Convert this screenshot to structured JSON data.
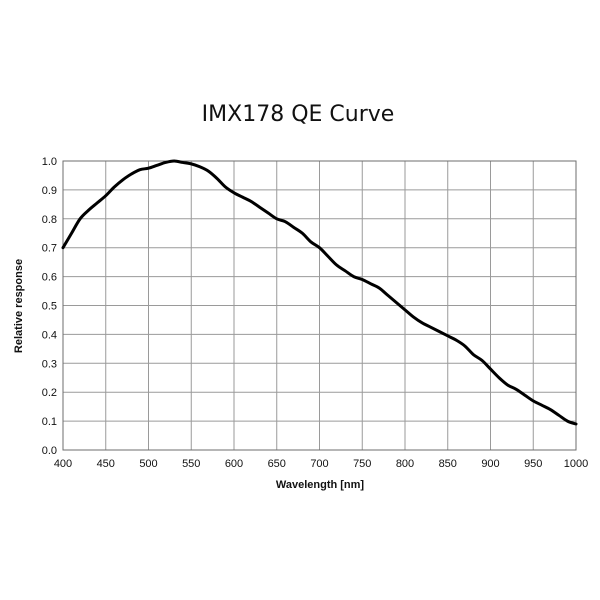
{
  "chart_data": {
    "type": "line",
    "title": "IMX178 QE Curve",
    "xlabel": "Wavelength [nm]",
    "ylabel": "Relative response",
    "xlim": [
      400,
      1000
    ],
    "ylim": [
      0,
      1.0
    ],
    "x_ticks": [
      400,
      450,
      500,
      550,
      600,
      650,
      700,
      750,
      800,
      850,
      900,
      950,
      1000
    ],
    "y_ticks": [
      "0.0",
      "0.1",
      "0.2",
      "0.3",
      "0.4",
      "0.5",
      "0.6",
      "0.7",
      "0.8",
      "0.9",
      "1.0"
    ],
    "grid": true,
    "legend": "none",
    "series": [
      {
        "color": "#000000",
        "x": [
          400,
          410,
          420,
          430,
          440,
          450,
          460,
          470,
          480,
          490,
          500,
          510,
          520,
          530,
          540,
          550,
          560,
          570,
          580,
          590,
          600,
          610,
          620,
          630,
          640,
          650,
          660,
          670,
          680,
          690,
          700,
          710,
          720,
          730,
          740,
          750,
          760,
          770,
          780,
          790,
          800,
          810,
          820,
          830,
          840,
          850,
          860,
          870,
          880,
          890,
          900,
          910,
          920,
          930,
          940,
          950,
          960,
          970,
          980,
          990,
          1000
        ],
        "y": [
          0.7,
          0.75,
          0.8,
          0.83,
          0.855,
          0.88,
          0.91,
          0.935,
          0.955,
          0.97,
          0.975,
          0.985,
          0.995,
          1.0,
          0.995,
          0.99,
          0.98,
          0.965,
          0.94,
          0.91,
          0.89,
          0.875,
          0.86,
          0.84,
          0.82,
          0.8,
          0.79,
          0.77,
          0.75,
          0.72,
          0.7,
          0.67,
          0.64,
          0.62,
          0.6,
          0.59,
          0.575,
          0.56,
          0.535,
          0.51,
          0.485,
          0.46,
          0.44,
          0.425,
          0.41,
          0.395,
          0.38,
          0.36,
          0.33,
          0.31,
          0.28,
          0.25,
          0.225,
          0.21,
          0.19,
          0.17,
          0.155,
          0.14,
          0.12,
          0.1,
          0.09
        ]
      }
    ]
  }
}
